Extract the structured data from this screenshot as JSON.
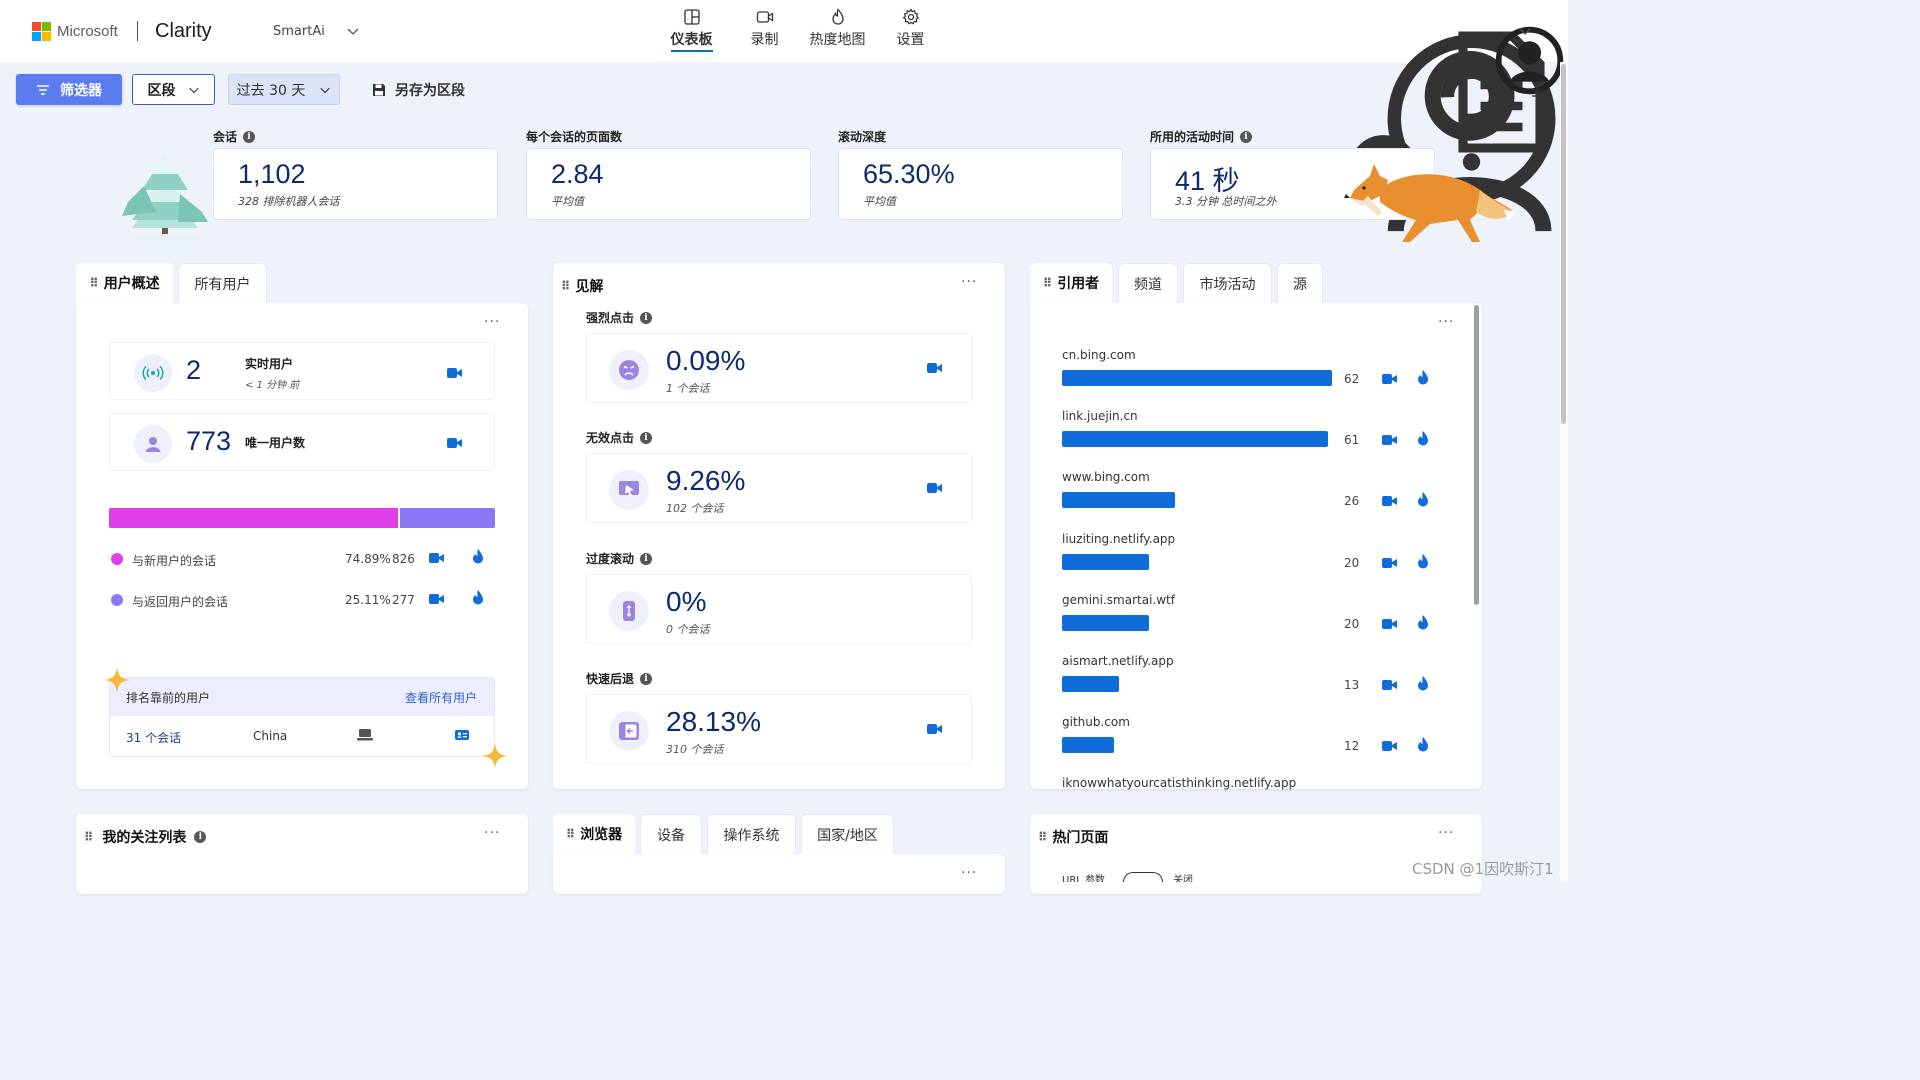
{
  "header": {
    "ms_logo_text": "Microsoft",
    "app_name": "Clarity",
    "project": "SmartAi",
    "nav": [
      {
        "label": "仪表板",
        "icon": "dashboard-icon",
        "active": true
      },
      {
        "label": "录制",
        "icon": "video-icon",
        "active": false
      },
      {
        "label": "热度地图",
        "icon": "flame-icon",
        "active": false
      },
      {
        "label": "设置",
        "icon": "gear-icon",
        "active": false
      }
    ]
  },
  "toolbar": {
    "filter_label": "筛选器",
    "segment_label": "区段",
    "range_label": "过去 30 天",
    "save_label": "另存为区段"
  },
  "metrics": [
    {
      "label": "会话",
      "value": "1,102",
      "sub": "328 排除机器人会话",
      "info": true
    },
    {
      "label": "每个会话的页面数",
      "value": "2.84",
      "sub": "平均值",
      "info": false
    },
    {
      "label": "滚动深度",
      "value": "65.30%",
      "sub": "平均值",
      "info": false
    },
    {
      "label": "所用的活动时间",
      "value": "41 秒",
      "sub": "3.3 分钟 总时间之外",
      "info": true
    }
  ],
  "users_panel": {
    "tabs": [
      "用户概述",
      "所有用户"
    ],
    "live": {
      "value": "2",
      "label": "实时用户",
      "sub": "< 1 分钟 前"
    },
    "unique": {
      "value": "773",
      "label": "唯一用户数"
    },
    "split": {
      "new_fraction": 0.7489,
      "new_color": "#e03ee6",
      "return_color": "#8a78f4"
    },
    "legend": [
      {
        "label": "与新用户的会话",
        "percent": "74.89%",
        "count": "826"
      },
      {
        "label": "与返回用户的会话",
        "percent": "25.11%",
        "count": "277"
      }
    ],
    "top_users": {
      "title": "排名靠前的用户",
      "link": "查看所有用户",
      "row": {
        "sessions": "31 个会话",
        "country": "China"
      }
    }
  },
  "insights_panel": {
    "title": "见解",
    "items": [
      {
        "label": "强烈点击",
        "value": "0.09%",
        "sub": "1 个会话",
        "icon": "angry-face-icon"
      },
      {
        "label": "无效点击",
        "value": "9.26%",
        "sub": "102 个会话",
        "icon": "cursor-screen-icon"
      },
      {
        "label": "过度滚动",
        "value": "0%",
        "sub": "0 个会话",
        "icon": "scroll-phone-icon"
      },
      {
        "label": "快速后退",
        "value": "28.13%",
        "sub": "310 个会话",
        "icon": "back-arrow-icon"
      }
    ]
  },
  "referrers_panel": {
    "tabs": [
      "引用者",
      "频道",
      "市场活动",
      "源"
    ],
    "items": [
      {
        "name": "cn.bing.com",
        "count": "62",
        "value": 62
      },
      {
        "name": "link.juejin.cn",
        "count": "61",
        "value": 61
      },
      {
        "name": "www.bing.com",
        "count": "26",
        "value": 26
      },
      {
        "name": "liuziting.netlify.app",
        "count": "20",
        "value": 20
      },
      {
        "name": "gemini.smartai.wtf",
        "count": "20",
        "value": 20
      },
      {
        "name": "aismart.netlify.app",
        "count": "13",
        "value": 13
      },
      {
        "name": "github.com",
        "count": "12",
        "value": 12
      },
      {
        "name": "iknowwhatyourcatisthinking.netlify.app",
        "count": "",
        "value": 0
      }
    ]
  },
  "bottom": {
    "watchlist_title": "我的关注列表",
    "browser_tabs": [
      "浏览器",
      "设备",
      "操作系统",
      "国家/地区"
    ],
    "popular_title": "热门页面",
    "url_param_label": "URL 参数",
    "toggle_state": "关闭"
  },
  "watermark": "CSDN @1因吹斯汀1"
}
